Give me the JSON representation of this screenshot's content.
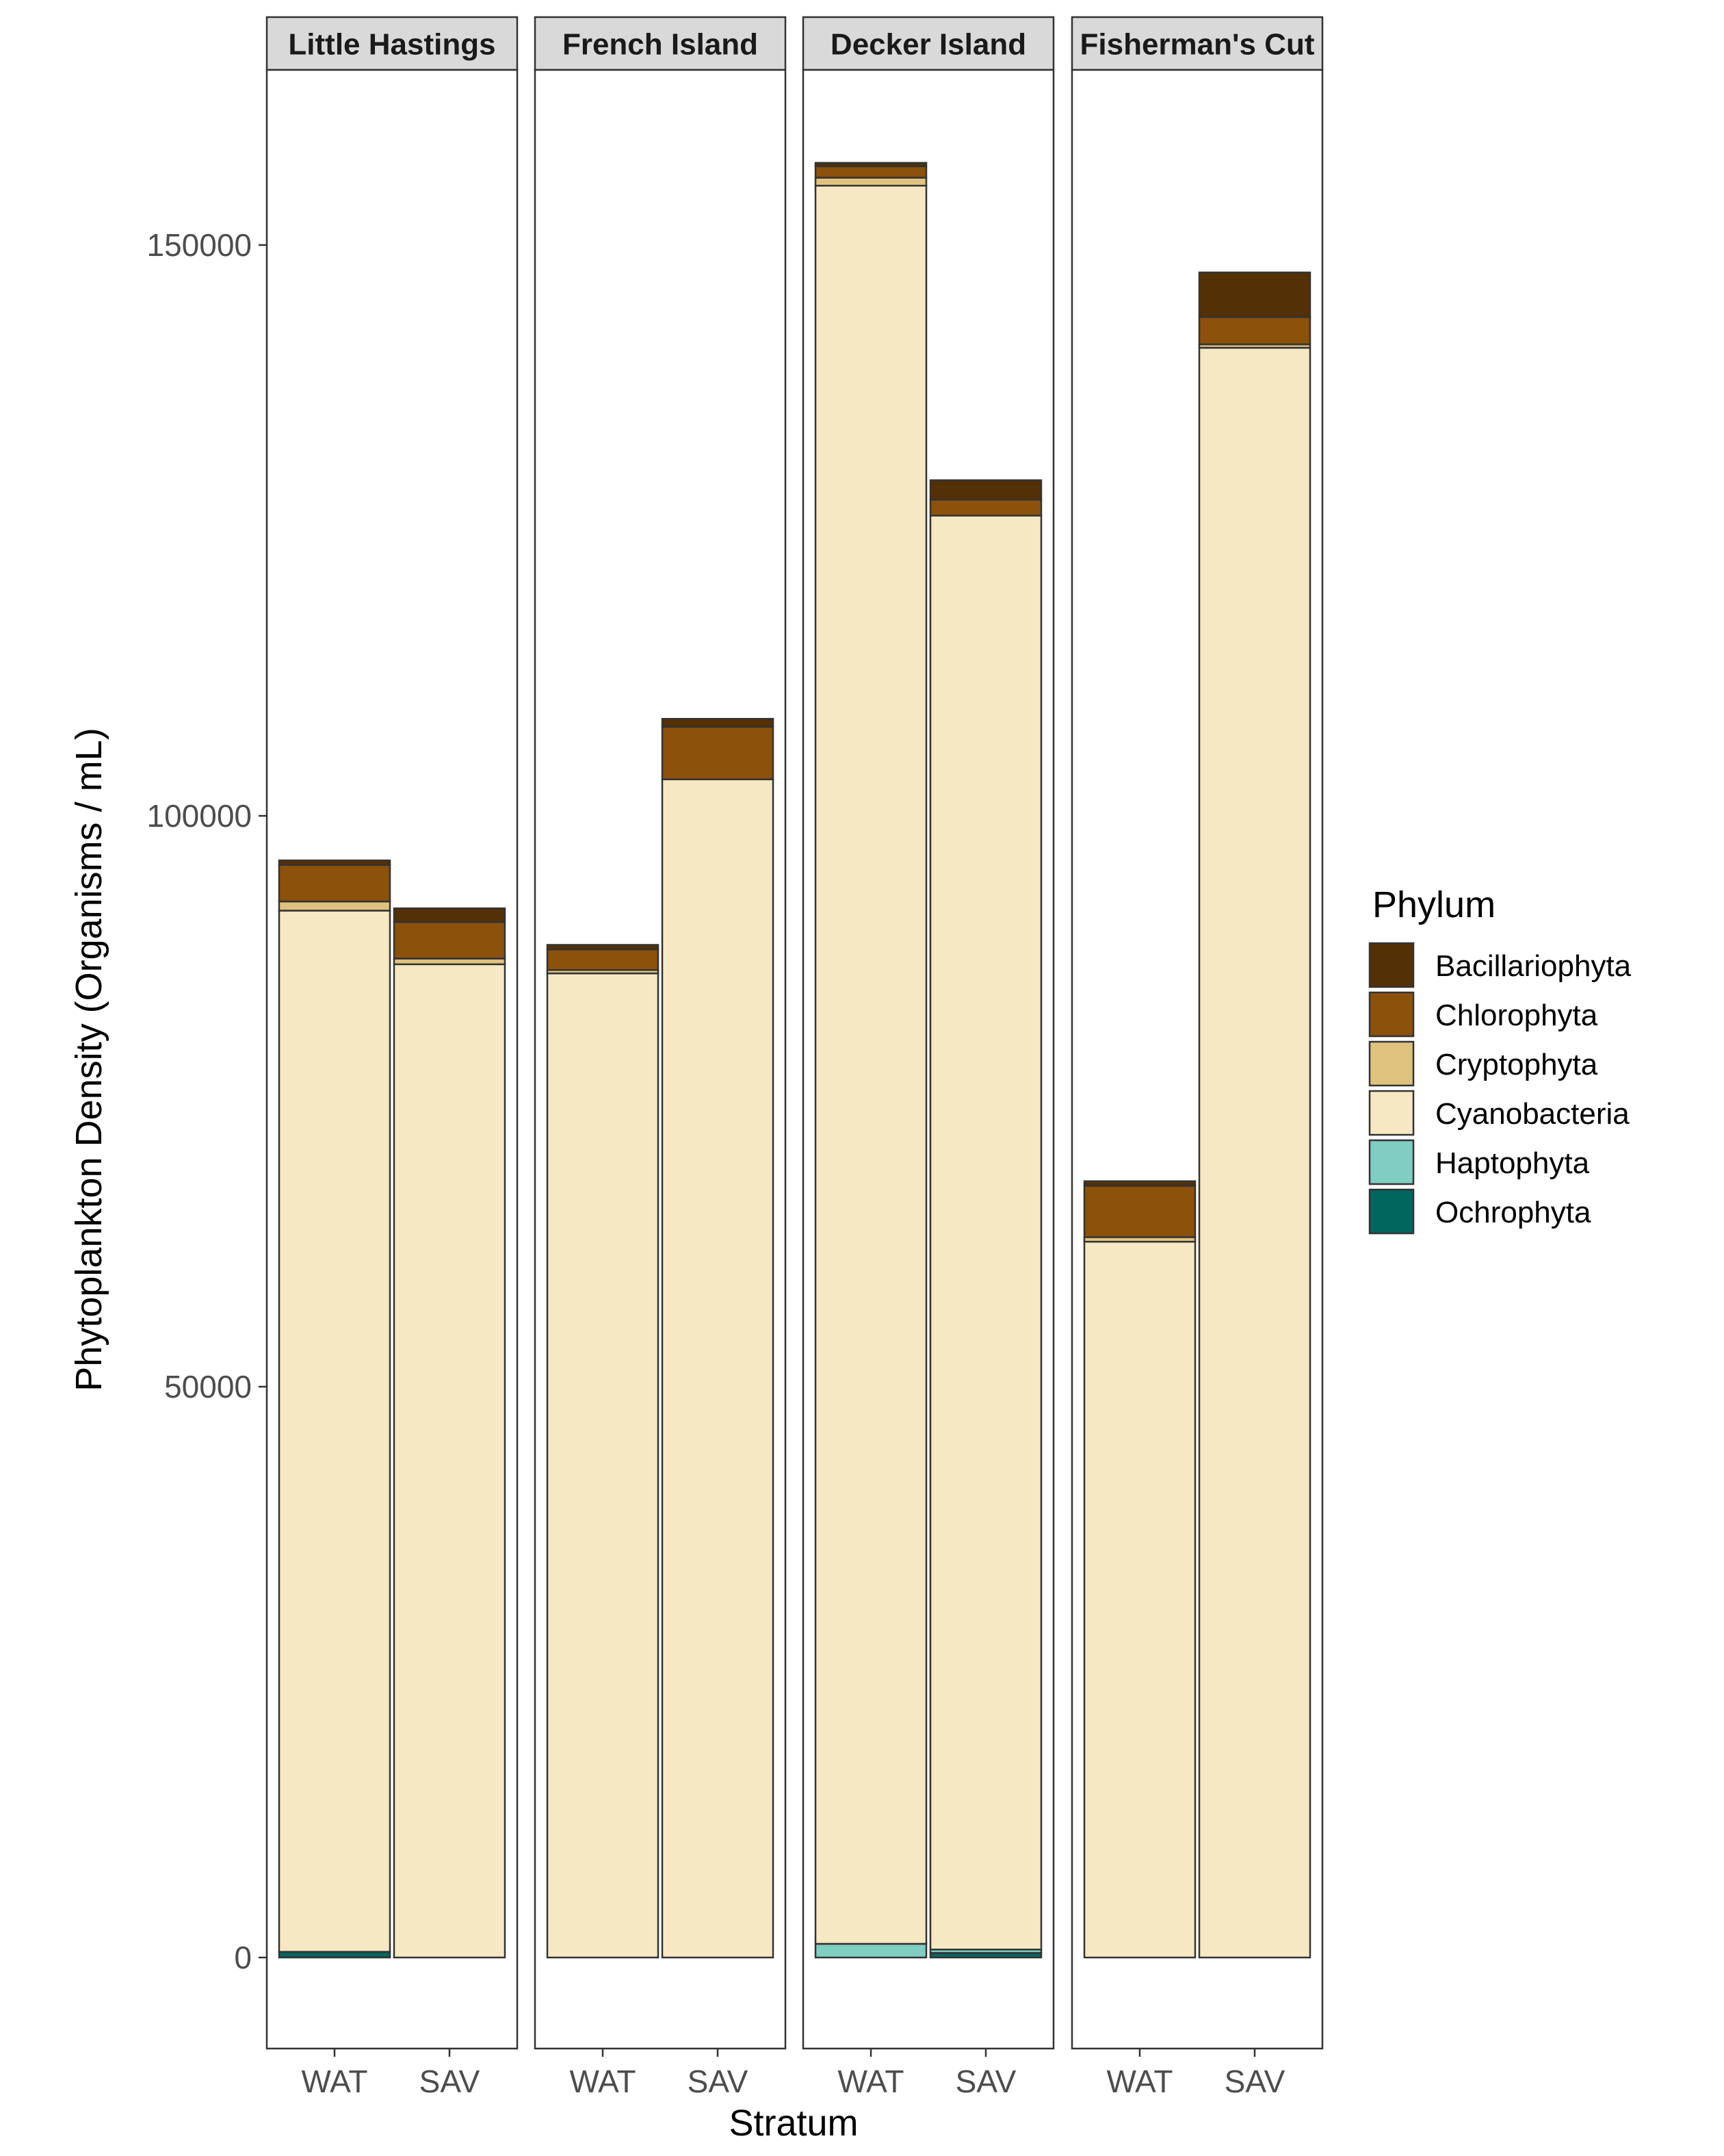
{
  "chart_data": {
    "type": "bar",
    "stacked": true,
    "xlabel": "Stratum",
    "ylabel": "Phytoplankton Density (Organisms / mL)",
    "ylim": [
      -8000,
      166000
    ],
    "yticks": [
      0,
      50000,
      100000,
      150000
    ],
    "grid": false,
    "legend": {
      "title": "Phylum",
      "position": "right"
    },
    "stack_order": [
      "Ochrophyta",
      "Haptophyta",
      "Cyanobacteria",
      "Cryptophyta",
      "Chlorophyta",
      "Bacillariophyta"
    ],
    "phyla": [
      {
        "name": "Bacillariophyta",
        "color": "#543005"
      },
      {
        "name": "Chlorophyta",
        "color": "#8c510a"
      },
      {
        "name": "Cryptophyta",
        "color": "#dfc27d"
      },
      {
        "name": "Cyanobacteria",
        "color": "#f6e8c3"
      },
      {
        "name": "Haptophyta",
        "color": "#80cdc1"
      },
      {
        "name": "Ochrophyta",
        "color": "#01665e"
      }
    ],
    "panels": [
      {
        "site": "Little Hastings",
        "bars": [
          {
            "stratum": "WAT",
            "values": {
              "Ochrophyta": 500,
              "Haptophyta": 0,
              "Cyanobacteria": 91200,
              "Cryptophyta": 800,
              "Chlorophyta": 3200,
              "Bacillariophyta": 400
            }
          },
          {
            "stratum": "SAV",
            "values": {
              "Ochrophyta": 0,
              "Haptophyta": 0,
              "Cyanobacteria": 87000,
              "Cryptophyta": 500,
              "Chlorophyta": 3200,
              "Bacillariophyta": 1200
            }
          }
        ]
      },
      {
        "site": "French Island",
        "bars": [
          {
            "stratum": "WAT",
            "values": {
              "Ochrophyta": 0,
              "Haptophyta": 0,
              "Cyanobacteria": 86200,
              "Cryptophyta": 300,
              "Chlorophyta": 1800,
              "Bacillariophyta": 400
            }
          },
          {
            "stratum": "SAV",
            "values": {
              "Ochrophyta": 0,
              "Haptophyta": 0,
              "Cyanobacteria": 103200,
              "Cryptophyta": 0,
              "Chlorophyta": 4600,
              "Bacillariophyta": 700
            }
          }
        ]
      },
      {
        "site": "Decker Island",
        "bars": [
          {
            "stratum": "WAT",
            "values": {
              "Ochrophyta": 0,
              "Haptophyta": 1200,
              "Cyanobacteria": 154000,
              "Cryptophyta": 700,
              "Chlorophyta": 1000,
              "Bacillariophyta": 300
            }
          },
          {
            "stratum": "SAV",
            "values": {
              "Ochrophyta": 400,
              "Haptophyta": 300,
              "Cyanobacteria": 125600,
              "Cryptophyta": 0,
              "Chlorophyta": 1400,
              "Bacillariophyta": 1700
            }
          }
        ]
      },
      {
        "site": "Fisherman's Cut",
        "bars": [
          {
            "stratum": "WAT",
            "values": {
              "Ochrophyta": 0,
              "Haptophyta": 0,
              "Cyanobacteria": 62700,
              "Cryptophyta": 400,
              "Chlorophyta": 4500,
              "Bacillariophyta": 400
            }
          },
          {
            "stratum": "SAV",
            "values": {
              "Ochrophyta": 0,
              "Haptophyta": 0,
              "Cyanobacteria": 141000,
              "Cryptophyta": 300,
              "Chlorophyta": 2400,
              "Bacillariophyta": 3900
            }
          }
        ]
      }
    ]
  }
}
